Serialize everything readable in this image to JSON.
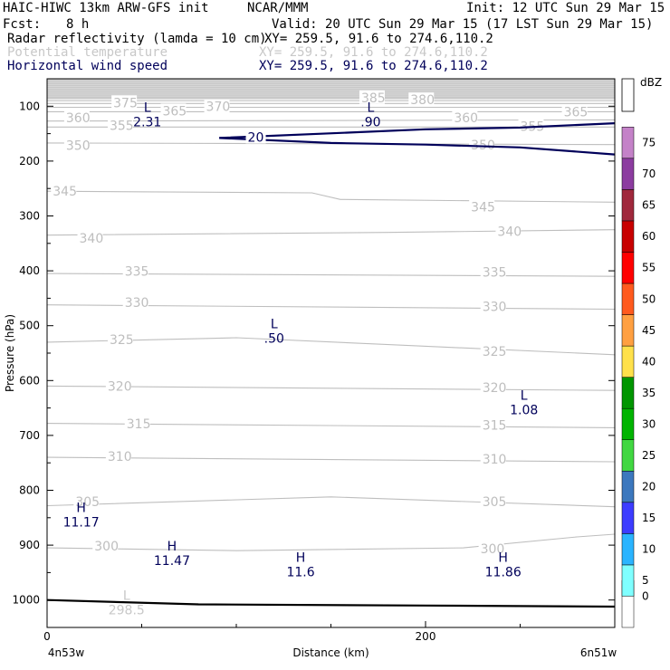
{
  "header": {
    "title": "HAIC-HIWC 13km ARW-GFS init",
    "org": "NCAR/MMM",
    "init": "Init: 12 UTC Sun 29 Mar 15",
    "fcst_label": "Fcst:",
    "fcst_value": "8 h",
    "valid": "Valid: 20 UTC Sun 29 Mar 15 (17 LST Sun 29 Mar 15)",
    "field1_name": "Radar reflectivity (lamda = 10 cm)",
    "field1_xy": "XY= 259.5, 91.6 to 274.6,110.2",
    "field2_name": "Potential temperature",
    "field2_xy": "XY= 259.5, 91.6 to 274.6,110.2",
    "field3_name": "Horizontal wind speed",
    "field3_xy": "XY= 259.5, 91.6 to 274.6,110.2"
  },
  "colors": {
    "theta": "#bebebe",
    "wind": "#00005a",
    "surface": "#000000",
    "top_band": "#c8c8c8"
  },
  "chart_data": {
    "type": "line",
    "title": "",
    "xlabel": "Distance (km)",
    "ylabel": "Pressure (hPa)",
    "xlim": [
      0,
      300
    ],
    "ylim": [
      1050,
      50
    ],
    "x_ticks": [
      "0",
      "200"
    ],
    "y_ticks": [
      "100",
      "200",
      "300",
      "400",
      "500",
      "600",
      "700",
      "800",
      "900",
      "1000"
    ],
    "x_end_labels": {
      "left": "4n53w",
      "right": "6n51w"
    },
    "colorbar": {
      "unit": "dBZ",
      "labels": [
        "0",
        "5",
        "10",
        "15",
        "20",
        "25",
        "30",
        "35",
        "40",
        "45",
        "50",
        "55",
        "60",
        "65",
        "70",
        "75"
      ],
      "colors": [
        "#ffffff",
        "#7fffff",
        "#2ab4ff",
        "#3c3cff",
        "#3c78be",
        "#41d741",
        "#00b400",
        "#009600",
        "#ffe14b",
        "#ffa041",
        "#ff5a1e",
        "#ff0000",
        "#c80000",
        "#a0283c",
        "#8c3ca0",
        "#c482c8"
      ]
    },
    "theta_contours": [
      {
        "label": "300",
        "points": [
          [
            0,
            905
          ],
          [
            100,
            910
          ],
          [
            220,
            905
          ],
          [
            280,
            885
          ],
          [
            300,
            880
          ]
        ]
      },
      {
        "label": "305",
        "points": [
          [
            0,
            828
          ],
          [
            150,
            812
          ],
          [
            300,
            830
          ]
        ]
      },
      {
        "label": "310",
        "points": [
          [
            0,
            740
          ],
          [
            300,
            748
          ]
        ]
      },
      {
        "label": "315",
        "points": [
          [
            0,
            678
          ],
          [
            300,
            686
          ]
        ]
      },
      {
        "label": "320",
        "points": [
          [
            0,
            610
          ],
          [
            300,
            618
          ]
        ]
      },
      {
        "label": "325",
        "points": [
          [
            0,
            530
          ],
          [
            100,
            522
          ],
          [
            300,
            553
          ]
        ]
      },
      {
        "label": "330",
        "points": [
          [
            0,
            462
          ],
          [
            300,
            470
          ]
        ]
      },
      {
        "label": "335",
        "points": [
          [
            0,
            405
          ],
          [
            300,
            410
          ]
        ]
      },
      {
        "label": "340",
        "points": [
          [
            0,
            335
          ],
          [
            180,
            330
          ],
          [
            300,
            325
          ]
        ]
      },
      {
        "label": "345",
        "points": [
          [
            0,
            255
          ],
          [
            140,
            258
          ],
          [
            155,
            270
          ],
          [
            300,
            275
          ]
        ]
      },
      {
        "label": "350",
        "points": [
          [
            0,
            167
          ],
          [
            300,
            170
          ]
        ]
      },
      {
        "label": "355",
        "points": [
          [
            0,
            138
          ],
          [
            300,
            138
          ]
        ]
      },
      {
        "label": "360",
        "points": [
          [
            0,
            127
          ],
          [
            300,
            125
          ]
        ]
      },
      {
        "label": "365",
        "points": [
          [
            0,
            110
          ],
          [
            300,
            110
          ]
        ]
      },
      {
        "label": "370",
        "points": [
          [
            0,
            102
          ],
          [
            300,
            102
          ]
        ]
      },
      {
        "label": "375",
        "points": [
          [
            0,
            95
          ],
          [
            300,
            95
          ]
        ]
      },
      {
        "label": "380",
        "points": [
          [
            0,
            90
          ],
          [
            300,
            90
          ]
        ]
      },
      {
        "label": "385",
        "points": [
          [
            0,
            86
          ],
          [
            300,
            86
          ]
        ]
      }
    ],
    "theta_labels": [
      {
        "text": "300",
        "x": 25,
        "p": 903
      },
      {
        "text": "300",
        "x": 229,
        "p": 908
      },
      {
        "text": "305",
        "x": 15,
        "p": 822
      },
      {
        "text": "305",
        "x": 230,
        "p": 822
      },
      {
        "text": "310",
        "x": 32,
        "p": 740
      },
      {
        "text": "310",
        "x": 230,
        "p": 745
      },
      {
        "text": "315",
        "x": 42,
        "p": 680
      },
      {
        "text": "315",
        "x": 230,
        "p": 683
      },
      {
        "text": "320",
        "x": 32,
        "p": 612
      },
      {
        "text": "320",
        "x": 230,
        "p": 614
      },
      {
        "text": "325",
        "x": 33,
        "p": 527
      },
      {
        "text": "325",
        "x": 230,
        "p": 548
      },
      {
        "text": "330",
        "x": 41,
        "p": 459
      },
      {
        "text": "330",
        "x": 230,
        "p": 467
      },
      {
        "text": "335",
        "x": 41,
        "p": 402
      },
      {
        "text": "335",
        "x": 230,
        "p": 404
      },
      {
        "text": "340",
        "x": 17,
        "p": 342
      },
      {
        "text": "340",
        "x": 238,
        "p": 330
      },
      {
        "text": "345",
        "x": 3,
        "p": 256
      },
      {
        "text": "345",
        "x": 224,
        "p": 285
      },
      {
        "text": "350",
        "x": 10,
        "p": 173
      },
      {
        "text": "350",
        "x": 224,
        "p": 172
      },
      {
        "text": "355",
        "x": 33,
        "p": 137
      },
      {
        "text": "355",
        "x": 250,
        "p": 138
      },
      {
        "text": "360",
        "x": 10,
        "p": 123
      },
      {
        "text": "360",
        "x": 215,
        "p": 123
      },
      {
        "text": "365",
        "x": 61,
        "p": 110
      },
      {
        "text": "365",
        "x": 273,
        "p": 112
      },
      {
        "text": "370",
        "x": 84,
        "p": 102
      },
      {
        "text": "375",
        "x": 35,
        "p": 95
      },
      {
        "text": "380",
        "x": 192,
        "p": 90
      },
      {
        "text": "385",
        "x": 166,
        "p": 86
      }
    ],
    "wind_contours": [
      {
        "label": "20",
        "points": [
          [
            91,
            158
          ],
          [
            160,
            148
          ],
          [
            200,
            142
          ],
          [
            250,
            139
          ],
          [
            300,
            131
          ]
        ]
      },
      {
        "label": "",
        "points": [
          [
            91,
            158
          ],
          [
            150,
            167
          ],
          [
            200,
            170
          ],
          [
            250,
            175
          ],
          [
            300,
            188
          ]
        ]
      }
    ],
    "wind_labels": [
      {
        "text": "20",
        "x": 106,
        "p": 158
      }
    ],
    "extrema": [
      {
        "type": "L",
        "value": "2.31",
        "x": 53,
        "p": 110,
        "color": "#00005a"
      },
      {
        "type": "L",
        "value": ".90",
        "x": 171,
        "p": 110,
        "color": "#00005a"
      },
      {
        "type": "L",
        "value": ".50",
        "x": 120,
        "p": 505,
        "color": "#00005a"
      },
      {
        "type": "L",
        "value": "1.08",
        "x": 252,
        "p": 635,
        "color": "#00005a"
      },
      {
        "type": "H",
        "value": "11.17",
        "x": 18,
        "p": 840,
        "color": "#00005a"
      },
      {
        "type": "H",
        "value": "11.47",
        "x": 66,
        "p": 910,
        "color": "#00005a"
      },
      {
        "type": "H",
        "value": "11.6",
        "x": 134,
        "p": 930,
        "color": "#00005a"
      },
      {
        "type": "H",
        "value": "11.86",
        "x": 241,
        "p": 930,
        "color": "#00005a"
      },
      {
        "type": "L",
        "value": "298.5",
        "x": 42,
        "p": 1000,
        "color": "#c8c8c8"
      }
    ],
    "surface_pressure": {
      "points": [
        [
          0,
          1000
        ],
        [
          80,
          1008
        ],
        [
          200,
          1010
        ],
        [
          300,
          1012
        ]
      ]
    },
    "top_band": {
      "p_top": 50,
      "p_bottom": 85
    }
  }
}
